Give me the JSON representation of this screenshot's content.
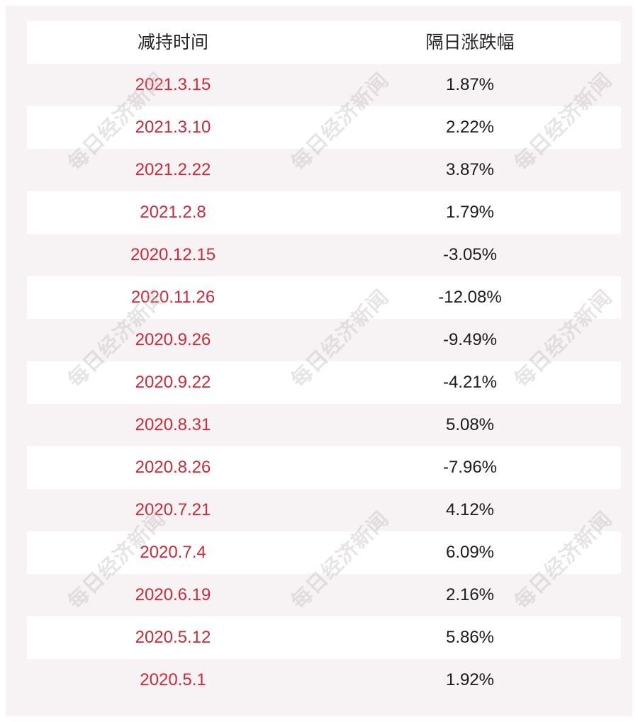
{
  "table": {
    "headers": [
      "减持时间",
      "隔日涨跌幅"
    ],
    "rows": [
      {
        "date": "2021.3.15",
        "change": "1.87%"
      },
      {
        "date": "2021.3.10",
        "change": "2.22%"
      },
      {
        "date": "2021.2.22",
        "change": "3.87%"
      },
      {
        "date": "2021.2.8",
        "change": "1.79%"
      },
      {
        "date": "2020.12.15",
        "change": "-3.05%"
      },
      {
        "date": "2020.11.26",
        "change": "-12.08%"
      },
      {
        "date": "2020.9.26",
        "change": "-9.49%"
      },
      {
        "date": "2020.9.22",
        "change": "-4.21%"
      },
      {
        "date": "2020.8.31",
        "change": "5.08%"
      },
      {
        "date": "2020.8.26",
        "change": "-7.96%"
      },
      {
        "date": "2020.7.21",
        "change": "4.12%"
      },
      {
        "date": "2020.7.4",
        "change": "6.09%"
      },
      {
        "date": "2020.6.19",
        "change": "2.16%"
      },
      {
        "date": "2020.5.12",
        "change": "5.86%"
      },
      {
        "date": "2020.5.1",
        "change": "1.92%"
      }
    ]
  },
  "watermark": {
    "text": "每日经济新闻"
  },
  "colors": {
    "date_text": "#d02a36",
    "change_text": "#1c1c1c",
    "header_text": "#222222",
    "stripe_light": "#f7f2f4",
    "stripe_white": "#ffffff"
  }
}
